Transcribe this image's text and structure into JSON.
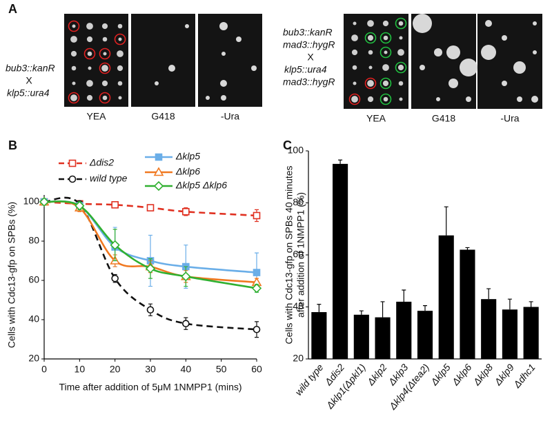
{
  "panel_a": {
    "label": "A",
    "left": {
      "genotype_lines": [
        "bub3::kanR",
        "X",
        "klp5::ura4"
      ],
      "plates": [
        "YEA",
        "G418",
        "-Ura"
      ]
    },
    "right": {
      "genotype_lines": [
        "bub3::kanR",
        "mad3::hygR",
        "X",
        "klp5::ura4",
        "mad3::hygR"
      ],
      "plates": [
        "YEA",
        "G418",
        "-Ura"
      ]
    }
  },
  "chart_data": [
    {
      "type": "line",
      "panel_label": "B",
      "x_label": "Time after addition of 5μM 1NMPP1 (mins)",
      "y_label": "Cells with Cdc13-gfp on SPBs (%)",
      "x": [
        0,
        10,
        20,
        30,
        40,
        60
      ],
      "xlim": [
        0,
        60
      ],
      "xticks": [
        0,
        10,
        20,
        30,
        40,
        50,
        60
      ],
      "ylim": [
        20,
        100
      ],
      "yticks": [
        20,
        40,
        60,
        80,
        100
      ],
      "series": [
        {
          "name": "Δdis2",
          "color": "#e03020",
          "marker": "square-open",
          "dashed": true,
          "values": [
            100,
            99,
            98.5,
            97,
            95,
            93
          ],
          "errors": [
            0,
            1,
            1,
            1,
            2,
            3
          ]
        },
        {
          "name": "wild type",
          "color": "#111111",
          "marker": "circle-open",
          "dashed": true,
          "values": [
            100,
            99,
            61,
            45,
            38,
            35
          ],
          "errors": [
            0,
            1,
            2,
            3,
            3,
            4
          ]
        },
        {
          "name": "Δklp5",
          "color": "#6aaee8",
          "marker": "square-filled",
          "dashed": false,
          "values": [
            100,
            98,
            77,
            70,
            67,
            64
          ],
          "errors": [
            0,
            1,
            10,
            13,
            11,
            10
          ]
        },
        {
          "name": "Δklp6",
          "color": "#f07820",
          "marker": "triangle-open",
          "dashed": false,
          "values": [
            100,
            97,
            70,
            67,
            62,
            59
          ],
          "errors": [
            0,
            2,
            3,
            3,
            3,
            2
          ]
        },
        {
          "name": "Δklp5 Δklp6",
          "color": "#30b030",
          "marker": "diamond-open",
          "dashed": false,
          "values": [
            100,
            98,
            78,
            66,
            62,
            56
          ],
          "errors": [
            0,
            2,
            8,
            5,
            5,
            2
          ]
        }
      ]
    },
    {
      "type": "bar",
      "panel_label": "C",
      "y_label": [
        "Cells with Cdc13-gfp on SPBs 40 minutes",
        "after addition of 1NMPP1 (%)"
      ],
      "categories": [
        "wild type",
        "Δdis2",
        "Δklp1(Δpkl1)",
        "Δklp2",
        "Δklp3",
        "Δklp4(Δtea2)",
        "Δklp5",
        "Δklp6",
        "Δklp8",
        "Δklp9",
        "Δdhc1"
      ],
      "values": [
        38,
        95,
        37,
        36,
        42,
        38.5,
        67.5,
        62,
        43,
        39,
        40
      ],
      "errors": [
        3,
        1.5,
        1.5,
        6,
        4.5,
        2,
        11,
        0.8,
        4,
        4,
        2
      ],
      "color": "#000000",
      "ylim": [
        20,
        100
      ],
      "yticks": [
        20,
        40,
        60,
        80,
        100
      ]
    }
  ]
}
